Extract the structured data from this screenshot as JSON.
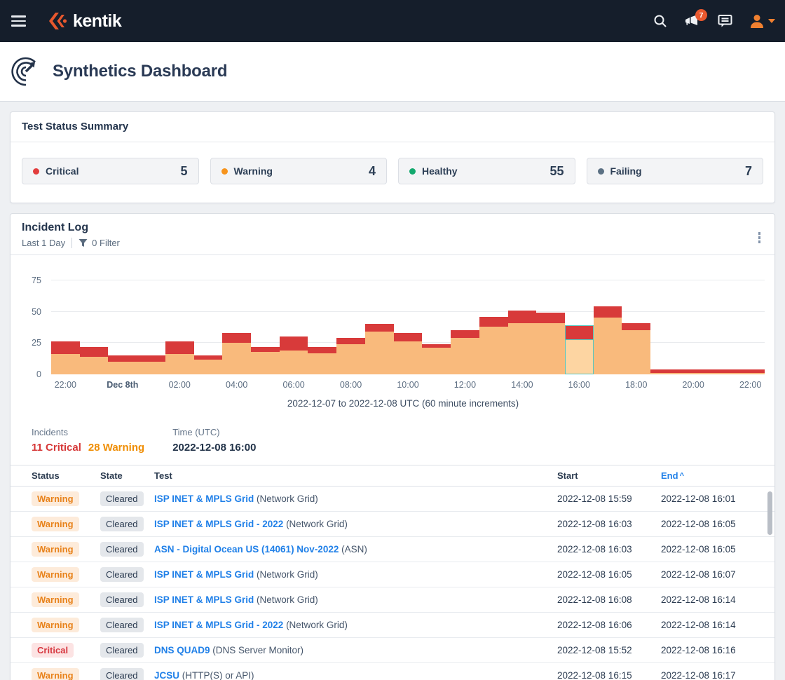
{
  "navbar": {
    "brand": "kentik",
    "notification_count": "7"
  },
  "page": {
    "title": "Synthetics Dashboard"
  },
  "status_summary": {
    "title": "Test Status Summary",
    "tiles": [
      {
        "label": "Critical",
        "value": "5",
        "color": "#e23d3d"
      },
      {
        "label": "Warning",
        "value": "4",
        "color": "#f7941d"
      },
      {
        "label": "Healthy",
        "value": "55",
        "color": "#13a96e"
      },
      {
        "label": "Failing",
        "value": "7",
        "color": "#5b7083"
      }
    ]
  },
  "incident_log": {
    "title": "Incident Log",
    "time_range": "Last 1 Day",
    "filter_label": "0 Filter",
    "caption": "2022-12-07 to 2022-12-08 UTC (60 minute increments)",
    "summary": {
      "incidents_label": "Incidents",
      "critical_text": "11 Critical",
      "warning_text": "28 Warning",
      "time_label": "Time (UTC)",
      "time_value": "2022-12-08 16:00"
    }
  },
  "chart_data": {
    "type": "bar",
    "stacked": true,
    "title": "",
    "xlabel": "2022-12-07 to 2022-12-08 UTC (60 minute increments)",
    "ylabel": "",
    "ylim": [
      0,
      75
    ],
    "yticks": [
      0,
      25,
      50,
      75
    ],
    "grid": true,
    "legend": false,
    "x_tick_labels": [
      "22:00",
      "Dec 8th",
      "02:00",
      "04:00",
      "06:00",
      "08:00",
      "10:00",
      "12:00",
      "14:00",
      "16:00",
      "18:00",
      "20:00",
      "22:00"
    ],
    "categories": [
      "22:00",
      "23:00",
      "Dec 8th",
      "01:00",
      "02:00",
      "03:00",
      "04:00",
      "05:00",
      "06:00",
      "07:00",
      "08:00",
      "09:00",
      "10:00",
      "11:00",
      "12:00",
      "13:00",
      "14:00",
      "15:00",
      "16:00",
      "17:00",
      "18:00",
      "19:00",
      "20:00",
      "21:00",
      "22:00"
    ],
    "series": [
      {
        "name": "Warning",
        "color": "#f9ba7c",
        "values": [
          16,
          14,
          10,
          10,
          16,
          12,
          25,
          18,
          19,
          17,
          24,
          34,
          26,
          21,
          29,
          38,
          41,
          41,
          28,
          45,
          35,
          1,
          1,
          1,
          1
        ]
      },
      {
        "name": "Critical",
        "color": "#d83a3a",
        "values": [
          10,
          8,
          5,
          5,
          10,
          3,
          8,
          4,
          11,
          5,
          5,
          6,
          7,
          3,
          6,
          8,
          10,
          8,
          11,
          9,
          6,
          3,
          3,
          3,
          3
        ]
      }
    ],
    "selected_index": 18,
    "selected_colors": {
      "warning_fill": "#fdd5a2",
      "outline": "#55c6bf"
    }
  },
  "table": {
    "columns": [
      "Status",
      "State",
      "Test",
      "Start",
      "End"
    ],
    "sort": {
      "column": "End",
      "direction": "asc",
      "indicator": "^"
    },
    "rows": [
      {
        "status": "Warning",
        "state": "Cleared",
        "test": "ISP INET & MPLS Grid",
        "test_type": "(Network Grid)",
        "start": "2022-12-08 15:59",
        "end": "2022-12-08 16:01"
      },
      {
        "status": "Warning",
        "state": "Cleared",
        "test": "ISP INET & MPLS Grid - 2022",
        "test_type": "(Network Grid)",
        "start": "2022-12-08 16:03",
        "end": "2022-12-08 16:05"
      },
      {
        "status": "Warning",
        "state": "Cleared",
        "test": "ASN - Digital Ocean US (14061) Nov-2022",
        "test_type": "(ASN)",
        "start": "2022-12-08 16:03",
        "end": "2022-12-08 16:05"
      },
      {
        "status": "Warning",
        "state": "Cleared",
        "test": "ISP INET & MPLS Grid",
        "test_type": "(Network Grid)",
        "start": "2022-12-08 16:05",
        "end": "2022-12-08 16:07"
      },
      {
        "status": "Warning",
        "state": "Cleared",
        "test": "ISP INET & MPLS Grid",
        "test_type": "(Network Grid)",
        "start": "2022-12-08 16:08",
        "end": "2022-12-08 16:14"
      },
      {
        "status": "Warning",
        "state": "Cleared",
        "test": "ISP INET & MPLS Grid - 2022",
        "test_type": "(Network Grid)",
        "start": "2022-12-08 16:06",
        "end": "2022-12-08 16:14"
      },
      {
        "status": "Critical",
        "state": "Cleared",
        "test": "DNS QUAD9",
        "test_type": "(DNS Server Monitor)",
        "start": "2022-12-08 15:52",
        "end": "2022-12-08 16:16"
      },
      {
        "status": "Warning",
        "state": "Cleared",
        "test": "JCSU",
        "test_type": "(HTTP(S) or API)",
        "start": "2022-12-08 16:15",
        "end": "2022-12-08 16:17"
      }
    ]
  }
}
